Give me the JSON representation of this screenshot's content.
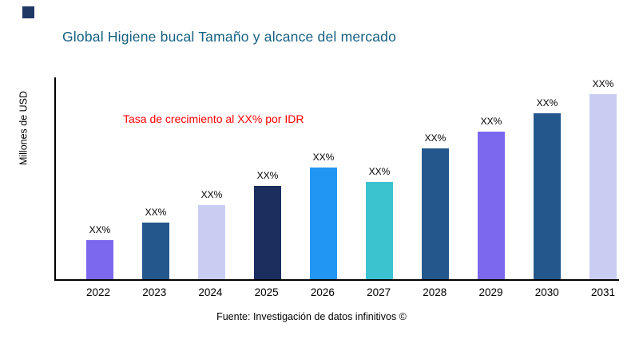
{
  "header": {
    "title": "Global Higiene bucal Tamaño y alcance del mercado"
  },
  "colors": {
    "title": "#156082",
    "annotation": "#FF0000",
    "axis": "#000000",
    "logo": "#1F3864"
  },
  "chart_data": {
    "type": "bar",
    "title": "Global Higiene bucal Tamaño y alcance del mercado",
    "ylabel": "Millones de USD",
    "xlabel": "",
    "annotation": "Tasa de crecimiento al XX% por IDR",
    "categories": [
      "2022",
      "2023",
      "2024",
      "2025",
      "2026",
      "2027",
      "2028",
      "2029",
      "2030",
      "2031"
    ],
    "values": [
      49,
      71,
      93,
      117,
      140,
      122,
      164,
      185,
      208,
      232
    ],
    "bar_labels": [
      "XX%",
      "XX%",
      "XX%",
      "XX%",
      "XX%",
      "XX%",
      "XX%",
      "XX%",
      "XX%",
      "XX%"
    ],
    "bar_colors": [
      "#7B68EE",
      "#24588C",
      "#C9CDF2",
      "#1B2F5E",
      "#2196F3",
      "#3BC3CF",
      "#24588C",
      "#7B68EE",
      "#24588C",
      "#C9CDF2"
    ],
    "ylim": [
      0,
      255
    ],
    "grid": false,
    "legend": false
  },
  "footer": {
    "source": "Fuente: Investigación de datos infinitivos ©"
  }
}
